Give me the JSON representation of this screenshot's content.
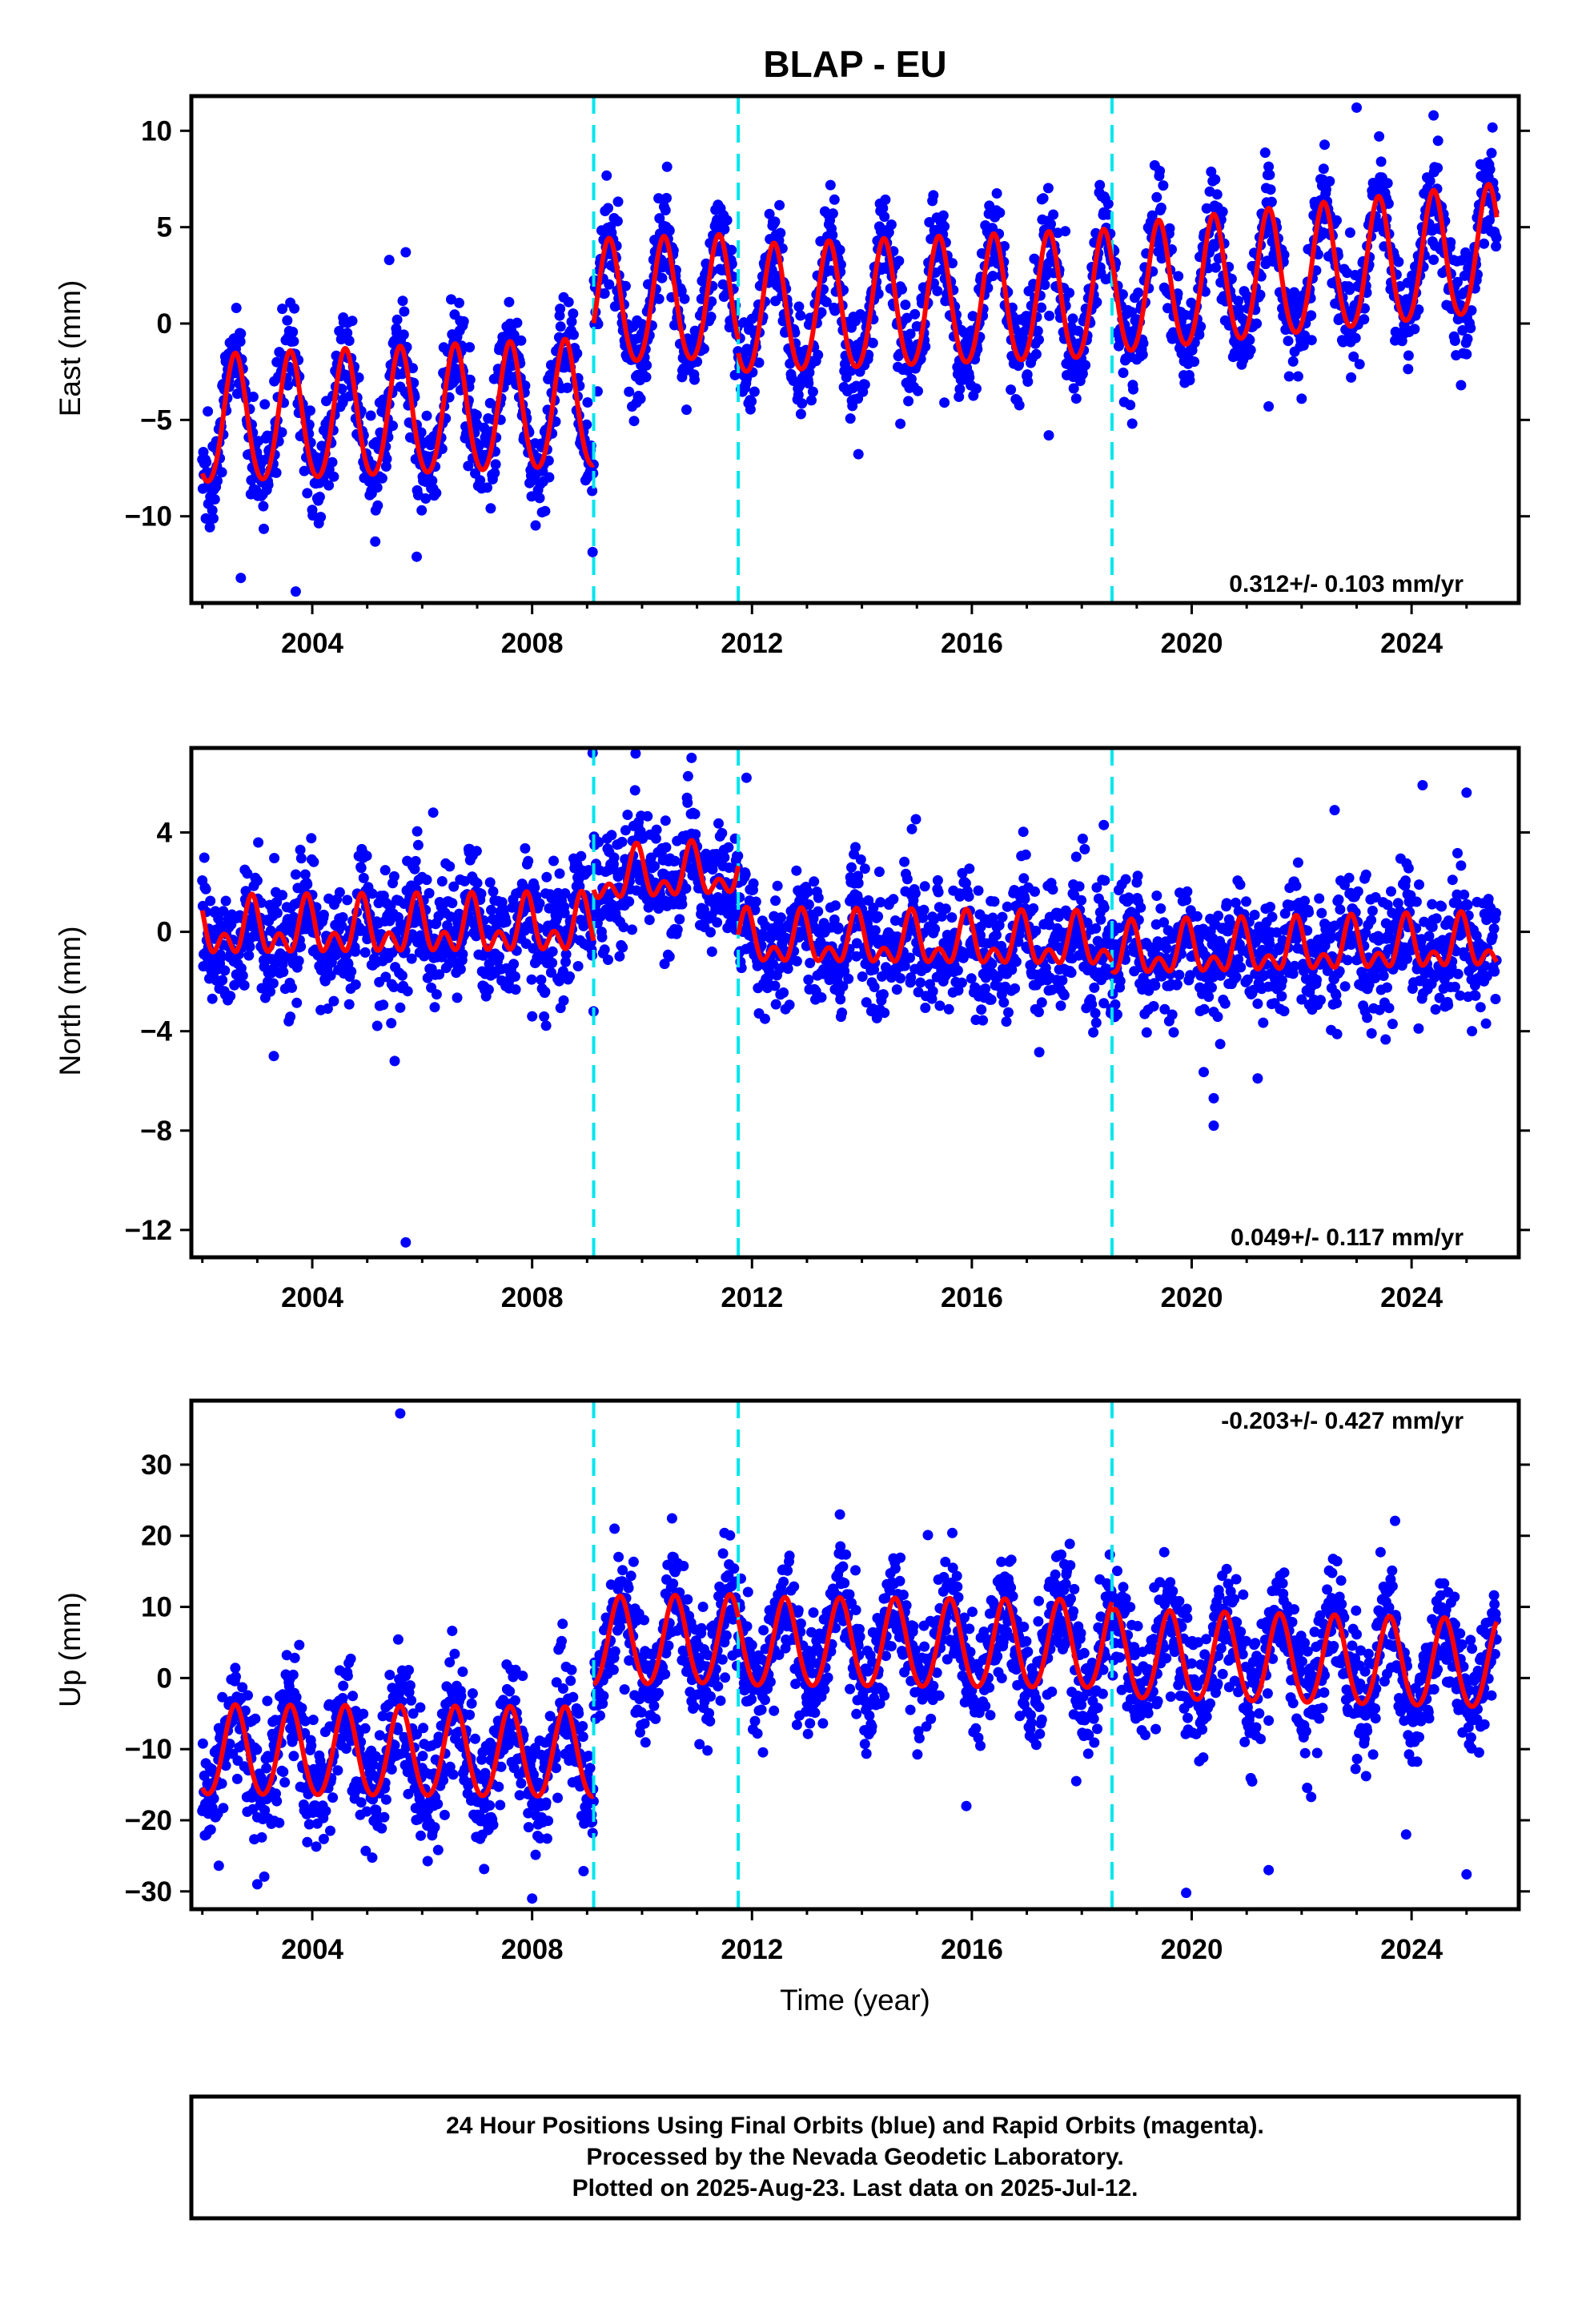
{
  "title": "BLAP - EU",
  "xlabel": "Time (year)",
  "footer": {
    "line1": "24 Hour Positions Using Final Orbits (blue) and Rapid Orbits (magenta).",
    "line2": "Processed by the Nevada Geodetic Laboratory.",
    "line3": "Plotted on 2025-Aug-23. Last data on 2025-Jul-12."
  },
  "colors": {
    "final_orbits": "#0000ff",
    "model": "#ff0000",
    "equipment_change": "#00e5ee"
  },
  "chart_data": [
    {
      "type": "scatter",
      "component": "East",
      "ylabel": "East (mm)",
      "rate_text": "0.312+/- 0.103 mm/yr",
      "rate_position": "bottom-right",
      "xlim": [
        2001.8,
        2025.95
      ],
      "ylim": [
        -14.5,
        11.8
      ],
      "xticks": [
        2004,
        2008,
        2012,
        2016,
        2020,
        2024
      ],
      "yticks": [
        -10,
        -5,
        0,
        5,
        10
      ],
      "ytick_labels": [
        "−10",
        "−5",
        "0",
        "5",
        "10"
      ],
      "grid": false,
      "offset_lines_x": [
        2009.12,
        2011.75,
        2018.55
      ],
      "model_segments": [
        {
          "start": 2002.0,
          "end": 2009.12,
          "baseline": -5.2,
          "slope": 0.12,
          "annual_amplitude": 3.3,
          "semiannual_amplitude": 0.3,
          "annual_phase_peak": 2002.6
        },
        {
          "start": 2009.12,
          "end": 2011.75,
          "baseline": 0.9,
          "slope": 0.1,
          "annual_amplitude": 3.2,
          "semiannual_amplitude": 0.3,
          "annual_phase_peak": 2009.4
        },
        {
          "start": 2011.75,
          "end": 2018.55,
          "baseline": 0.5,
          "slope": 0.12,
          "annual_amplitude": 3.3,
          "semiannual_amplitude": 0.3,
          "annual_phase_peak": 2012.4
        },
        {
          "start": 2018.55,
          "end": 2025.55,
          "baseline": 1.5,
          "slope": 0.31,
          "annual_amplitude": 3.3,
          "semiannual_amplitude": 0.3,
          "annual_phase_peak": 2019.4
        }
      ],
      "scatter_noise_sd": 1.3,
      "scatter_range": [
        2002.0,
        2025.55
      ],
      "outliers": [
        {
          "x": 2005.7,
          "y": 3.7
        },
        {
          "x": 2005.4,
          "y": 3.3
        },
        {
          "x": 2003.7,
          "y": -13.9
        },
        {
          "x": 2002.7,
          "y": -13.2
        },
        {
          "x": 2005.9,
          "y": -12.1
        },
        {
          "x": 2023.0,
          "y": 11.2
        },
        {
          "x": 2024.4,
          "y": 10.8
        },
        {
          "x": 2017.4,
          "y": -5.8
        },
        {
          "x": 2021.4,
          "y": -4.3
        },
        {
          "x": 2022.0,
          "y": -3.9
        },
        {
          "x": 2014.7,
          "y": -5.2
        },
        {
          "x": 2010.3,
          "y": 6.5
        },
        {
          "x": 2015.5,
          "y": -4.1
        },
        {
          "x": 2024.9,
          "y": -3.2
        },
        {
          "x": 2022.9,
          "y": -2.8
        }
      ]
    },
    {
      "type": "scatter",
      "component": "North",
      "ylabel": "North (mm)",
      "rate_text": "0.049+/- 0.117 mm/yr",
      "rate_position": "bottom-right",
      "xlim": [
        2001.8,
        2025.95
      ],
      "ylim": [
        -13.1,
        7.4
      ],
      "xticks": [
        2004,
        2008,
        2012,
        2016,
        2020,
        2024
      ],
      "yticks": [
        -12,
        -8,
        -4,
        0,
        4
      ],
      "ytick_labels": [
        "−12",
        "−8",
        "−4",
        "0",
        "4"
      ],
      "grid": false,
      "offset_lines_x": [
        2009.12,
        2011.75,
        2018.55
      ],
      "model_segments": [
        {
          "start": 2002.0,
          "end": 2009.12,
          "baseline": 0.0,
          "slope": 0.02,
          "annual_amplitude": 0.8,
          "semiannual_amplitude": 0.7,
          "annual_phase_peak": 2002.9
        },
        {
          "start": 2009.12,
          "end": 2011.75,
          "baseline": 2.1,
          "slope": 0.1,
          "annual_amplitude": 0.8,
          "semiannual_amplitude": 0.6,
          "annual_phase_peak": 2009.9
        },
        {
          "start": 2011.75,
          "end": 2018.55,
          "baseline": -0.4,
          "slope": -0.02,
          "annual_amplitude": 0.8,
          "semiannual_amplitude": 0.6,
          "annual_phase_peak": 2012.9
        },
        {
          "start": 2018.55,
          "end": 2025.55,
          "baseline": -0.9,
          "slope": 0.05,
          "annual_amplitude": 0.8,
          "semiannual_amplitude": 0.6,
          "annual_phase_peak": 2019.9
        }
      ],
      "scatter_noise_sd": 1.2,
      "scatter_range": [
        2002.0,
        2025.55
      ],
      "outliers": [
        {
          "x": 2005.7,
          "y": -12.5
        },
        {
          "x": 2005.5,
          "y": -5.2
        },
        {
          "x": 2009.1,
          "y": 7.2
        },
        {
          "x": 2010.9,
          "y": 7.0
        },
        {
          "x": 2020.4,
          "y": -7.8
        },
        {
          "x": 2020.4,
          "y": -6.7
        },
        {
          "x": 2024.2,
          "y": 5.9
        },
        {
          "x": 2025.0,
          "y": 5.6
        },
        {
          "x": 2022.6,
          "y": 4.9
        },
        {
          "x": 2006.2,
          "y": 4.8
        },
        {
          "x": 2003.3,
          "y": -5.0
        },
        {
          "x": 2008.0,
          "y": -3.4
        },
        {
          "x": 2011.9,
          "y": 6.2
        },
        {
          "x": 2018.4,
          "y": 4.3
        },
        {
          "x": 2021.2,
          "y": -5.9
        }
      ]
    },
    {
      "type": "scatter",
      "component": "Up",
      "ylabel": "Up (mm)",
      "rate_text": "-0.203+/- 0.427 mm/yr",
      "rate_position": "top-right",
      "xlim": [
        2001.8,
        2025.95
      ],
      "ylim": [
        -32.5,
        39.0
      ],
      "xticks": [
        2004,
        2008,
        2012,
        2016,
        2020,
        2024
      ],
      "yticks": [
        -30,
        -20,
        -10,
        0,
        10,
        20,
        30
      ],
      "ytick_labels": [
        "−30",
        "−20",
        "−10",
        "0",
        "10",
        "20",
        "30"
      ],
      "grid": false,
      "offset_lines_x": [
        2009.12,
        2011.75,
        2018.55
      ],
      "model_segments": [
        {
          "start": 2002.0,
          "end": 2009.12,
          "baseline": -10.5,
          "slope": -0.05,
          "annual_amplitude": 6.3,
          "semiannual_amplitude": 0.5,
          "annual_phase_peak": 2002.6
        },
        {
          "start": 2009.12,
          "end": 2011.75,
          "baseline": 4.8,
          "slope": 0.1,
          "annual_amplitude": 6.2,
          "semiannual_amplitude": 0.5,
          "annual_phase_peak": 2009.6
        },
        {
          "start": 2011.75,
          "end": 2018.55,
          "baseline": 4.7,
          "slope": -0.05,
          "annual_amplitude": 6.2,
          "semiannual_amplitude": 0.5,
          "annual_phase_peak": 2012.6
        },
        {
          "start": 2018.55,
          "end": 2025.55,
          "baseline": 3.0,
          "slope": -0.2,
          "annual_amplitude": 6.2,
          "semiannual_amplitude": 0.5,
          "annual_phase_peak": 2019.6
        }
      ],
      "scatter_noise_sd": 4.3,
      "scatter_range": [
        2002.0,
        2025.55
      ],
      "outliers": [
        {
          "x": 2005.6,
          "y": 37.2
        },
        {
          "x": 2013.6,
          "y": 23.0
        },
        {
          "x": 2023.7,
          "y": 22.1
        },
        {
          "x": 2008.0,
          "y": -31.0
        },
        {
          "x": 2019.9,
          "y": -30.2
        },
        {
          "x": 2025.0,
          "y": -27.6
        },
        {
          "x": 2002.3,
          "y": -26.4
        },
        {
          "x": 2003.0,
          "y": -29.0
        },
        {
          "x": 2015.2,
          "y": 20.1
        },
        {
          "x": 2009.5,
          "y": 21.0
        },
        {
          "x": 2011.5,
          "y": 20.4
        },
        {
          "x": 2021.4,
          "y": -27.0
        },
        {
          "x": 2015.9,
          "y": -18.0
        },
        {
          "x": 2017.9,
          "y": -14.5
        },
        {
          "x": 2023.9,
          "y": -22.0
        }
      ]
    }
  ]
}
